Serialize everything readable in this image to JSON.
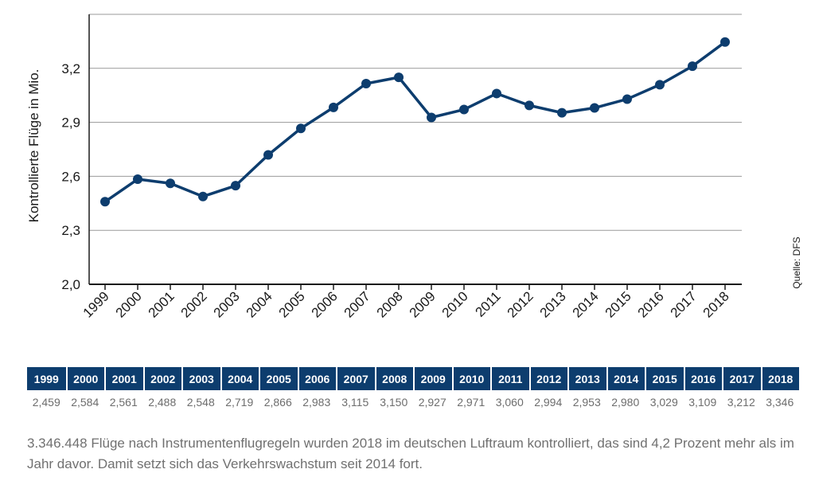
{
  "chart_data": {
    "type": "line",
    "title": "",
    "ylabel": "Kontrollierte Flüge in Mio.",
    "xlabel": "",
    "source": "Quelle: DFS",
    "ylim": [
      2.0,
      3.5
    ],
    "y_ticks": [
      "2,0",
      "2,3",
      "2,6",
      "2,9",
      "3,2"
    ],
    "y_tick_values": [
      2.0,
      2.3,
      2.6,
      2.9,
      3.2
    ],
    "grid": "horizontal",
    "categories": [
      "1999",
      "2000",
      "2001",
      "2002",
      "2003",
      "2004",
      "2005",
      "2006",
      "2007",
      "2008",
      "2009",
      "2010",
      "2011",
      "2012",
      "2013",
      "2014",
      "2015",
      "2016",
      "2017",
      "2018"
    ],
    "series": [
      {
        "values": [
          2.459,
          2.584,
          2.561,
          2.488,
          2.548,
          2.719,
          2.866,
          2.983,
          3.115,
          3.15,
          2.927,
          2.971,
          3.06,
          2.994,
          2.953,
          2.98,
          3.029,
          3.109,
          3.212,
          3.346
        ]
      }
    ],
    "line_color": "#0d3d6e",
    "grid_color": "#9a9a9a"
  },
  "table": {
    "headers": [
      "1999",
      "2000",
      "2001",
      "2002",
      "2003",
      "2004",
      "2005",
      "2006",
      "2007",
      "2008",
      "2009",
      "2010",
      "2011",
      "2012",
      "2013",
      "2014",
      "2015",
      "2016",
      "2017",
      "2018"
    ],
    "values": [
      "2,459",
      "2,584",
      "2,561",
      "2,488",
      "2,548",
      "2,719",
      "2,866",
      "2,983",
      "3,115",
      "3,150",
      "2,927",
      "2,971",
      "3,060",
      "2,994",
      "2,953",
      "2,980",
      "3,029",
      "3,109",
      "3,212",
      "3,346"
    ],
    "header_color": "#0d3d6e"
  },
  "caption": "3.346.448 Flüge nach Instrumentenflugregeln wurden 2018 im deutschen Luftraum kontrolliert, das sind 4,2 Prozent mehr als im Jahr davor. Damit setzt sich das Verkehrswachstum seit 2014 fort."
}
